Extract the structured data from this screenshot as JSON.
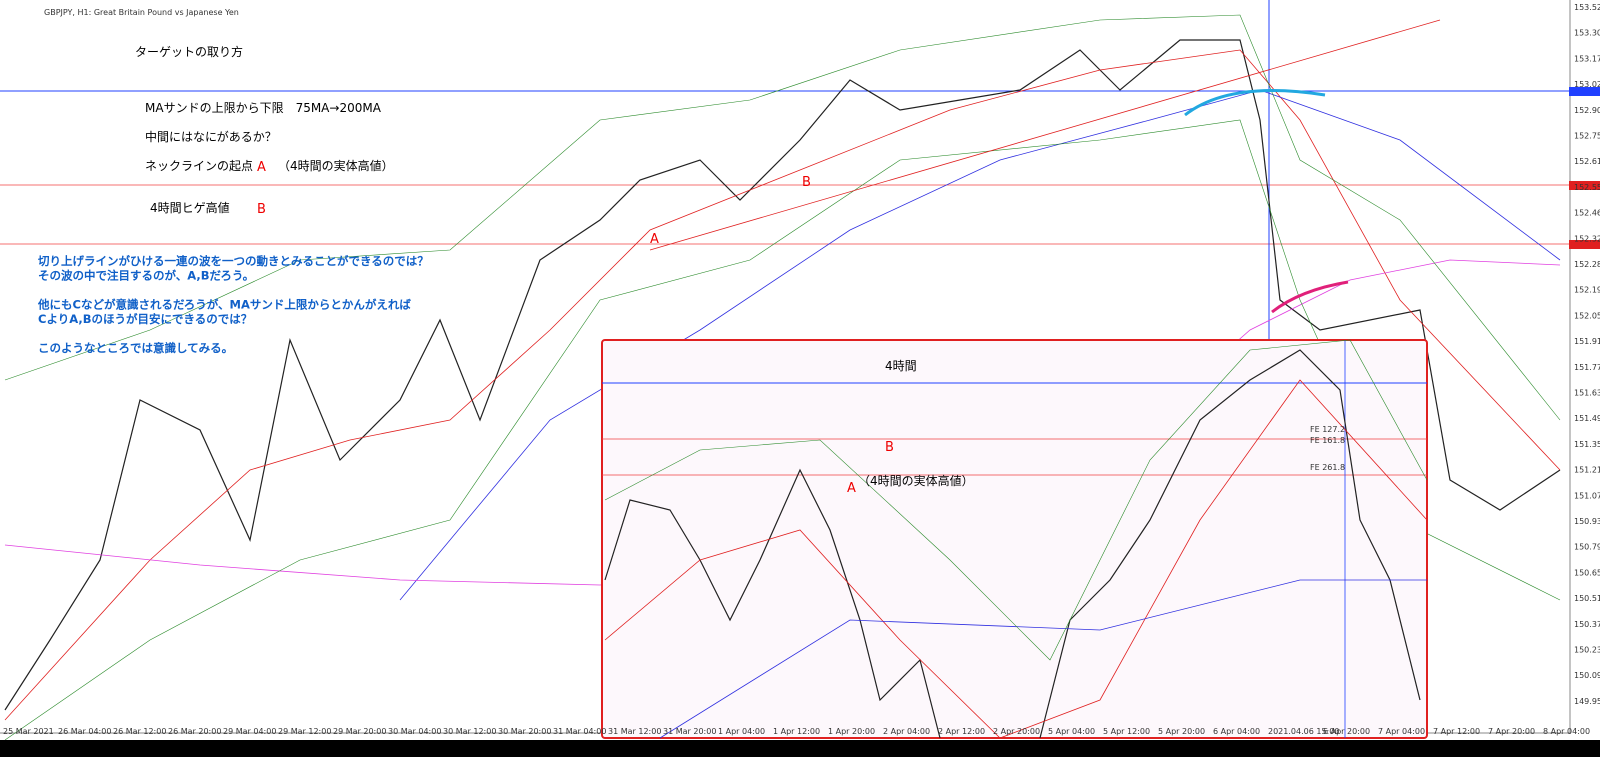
{
  "header": {
    "title": "GBPJPY, H1:  Great Britain Pound vs Japanese Yen"
  },
  "annotations": {
    "heading": "ターゲットの取り方",
    "line1": "MAサンドの上限から下限　75MA→200MA",
    "line2": "中間にはなにがあるか？",
    "line3": "ネックラインの起点",
    "line3_mark": "A",
    "line3_note": "（4時間の実体高値）",
    "line4": "4時間ヒゲ高値",
    "line4_mark": "B",
    "notes": [
      "切り上げラインがひける一連の波を一つの動きとみることができるのでは？",
      "その波の中で注目するのが、A,Bだろう。",
      "",
      "他にもCなどが意識されるだろうが、MAサンド上限からとかんがえれば",
      "CよりA,Bのほうが目安にできるのでは？",
      "",
      "このようなところでは意識してみる。"
    ]
  },
  "chart_marks": {
    "a": "A",
    "b": "B"
  },
  "inset": {
    "title": "4時間",
    "b": "B",
    "a": "A",
    "a_note": "（4時間の実体高値）",
    "fe": [
      "FE 127.2",
      "FE 161.8",
      "FE 261.8"
    ]
  },
  "price_axis": [
    "153.52",
    "153.30",
    "153.17",
    "153.02",
    "152.90",
    "152.75",
    "152.61",
    "152.55",
    "152.46",
    "152.32",
    "152.28",
    "152.19",
    "152.05",
    "151.91",
    "151.77",
    "151.63",
    "151.49",
    "151.35",
    "151.21",
    "151.07",
    "150.93",
    "150.79",
    "150.65",
    "150.51",
    "150.37",
    "150.23",
    "150.09",
    "149.95"
  ],
  "time_axis": [
    "25 Mar 2021",
    "26 Mar 04:00",
    "26 Mar 12:00",
    "26 Mar 20:00",
    "29 Mar 04:00",
    "29 Mar 12:00",
    "29 Mar 20:00",
    "30 Mar 04:00",
    "30 Mar 12:00",
    "30 Mar 20:00",
    "31 Mar 04:00",
    "31 Mar 12:00",
    "31 Mar 20:00",
    "1 Apr 04:00",
    "1 Apr 12:00",
    "1 Apr 20:00",
    "2 Apr 04:00",
    "2 Apr 12:00",
    "2 Apr 20:00",
    "5 Apr 04:00",
    "5 Apr 12:00",
    "5 Apr 20:00",
    "6 Apr 04:00",
    "2021.04.06 15:00",
    "6 Apr 20:00",
    "7 Apr 04:00",
    "7 Apr 12:00",
    "7 Apr 20:00",
    "8 Apr 04:00"
  ]
}
